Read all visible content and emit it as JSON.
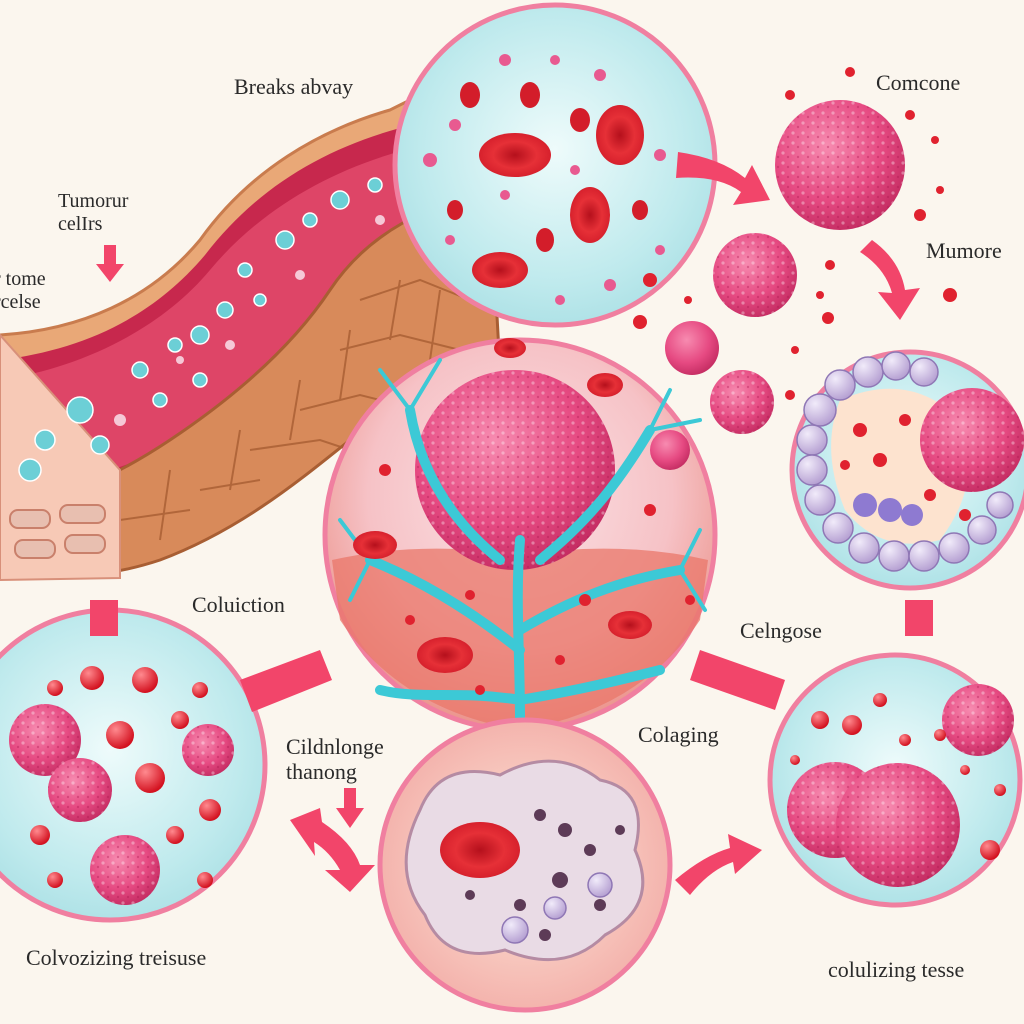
{
  "labels": {
    "breaks_away": "Breaks abvay",
    "tumour_cells": "Tumorur\ncelIrs",
    "tome_celse": "r tome\nrcelse",
    "comcone": "Comcone",
    "mumore": "Mumore",
    "coluction": "Coluiction",
    "celngose": "Celngose",
    "colaging": "Colaging",
    "cildnlonge_thanong": "Cildnlonge\nthanong",
    "colvozizing": "Colvozizing treisuse",
    "colulizing": "colulizing tesse"
  },
  "colors": {
    "background": "#fbf6ee",
    "arrow": "#f2456a",
    "circle_border": "#f07fa0",
    "tumor": "#e8487f",
    "red_cell": "#e0222f",
    "vessel": "#3cc9d6",
    "cyan_fill": "#c9eef0",
    "lavender": "#c9b6e0"
  },
  "icons": [
    "blood-vessel-illustration",
    "red-blood-cell-icon",
    "tumor-cell-icon",
    "arrow-icon"
  ]
}
